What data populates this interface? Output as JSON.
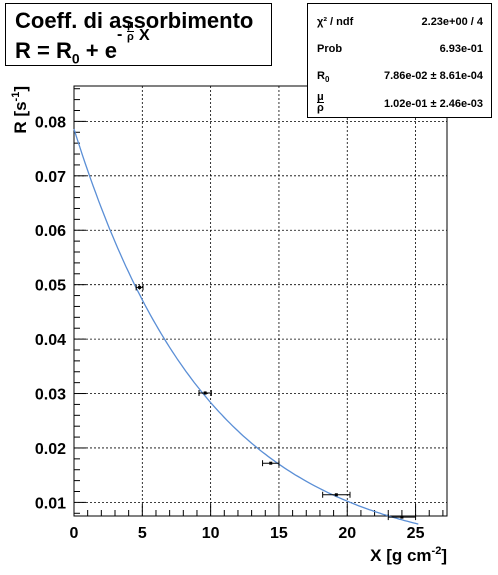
{
  "title": {
    "line1": "Coeff. di assorbimento",
    "line2_prefix": "R = R",
    "line2_sub": "0",
    "line2_mid": " + e",
    "exp_minus": "-",
    "exp_num": "μ",
    "exp_den": "ρ",
    "exp_var": "X"
  },
  "stats": {
    "chi2_label": "χ² / ndf",
    "chi2_value": "2.23e+00 / 4",
    "prob_label": "Prob",
    "prob_value": "6.93e-01",
    "r0_label": "R",
    "r0_sub": "0",
    "r0_value": "7.86e-02 ± 8.61e-04",
    "mu_num": "μ",
    "mu_den": "ρ",
    "mu_value": "1.02e-01 ± 2.46e-03"
  },
  "colors": {
    "fit": "#5b8fd6",
    "points": "#000000",
    "grid": "#000000"
  },
  "chart_data": {
    "type": "scatter",
    "xlabel": "X [g cm^-2]",
    "ylabel": "R [s^-1]",
    "xlim": [
      0,
      27.3
    ],
    "ylim": [
      0.0075,
      0.0865
    ],
    "grid": true,
    "x_ticks": [
      0,
      5,
      10,
      15,
      20,
      25
    ],
    "x_tick_labels": [
      "0",
      "5",
      "10",
      "15",
      "20",
      "25"
    ],
    "y_ticks": [
      0.01,
      0.02,
      0.03,
      0.04,
      0.05,
      0.06,
      0.07,
      0.08
    ],
    "y_tick_labels": [
      "0.01",
      "0.02",
      "0.03",
      "0.04",
      "0.05",
      "0.06",
      "0.07",
      "0.08"
    ],
    "points": [
      {
        "x": 4.8,
        "y": 0.0495,
        "xerr": 0.25,
        "yerr": 0.0004
      },
      {
        "x": 9.6,
        "y": 0.0301,
        "xerr": 0.45,
        "yerr": 0.0003
      },
      {
        "x": 14.4,
        "y": 0.0172,
        "xerr": 0.6,
        "yerr": 0.0002
      },
      {
        "x": 19.2,
        "y": 0.0114,
        "xerr": 1.0,
        "yerr": 0.0002
      },
      {
        "x": 24.0,
        "y": 0.0073,
        "xerr": 1.0,
        "yerr": 0.0002
      }
    ],
    "fit": {
      "R0": 0.0786,
      "mu": 0.102
    }
  }
}
